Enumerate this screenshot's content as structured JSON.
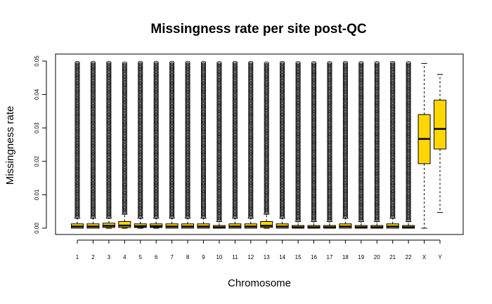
{
  "chart_data": {
    "type": "boxplot",
    "title": "Missingness rate per site post-QC",
    "xlabel": "Chromosome",
    "ylabel": "Missingness rate",
    "ylim": [
      0,
      0.05
    ],
    "yticks": [
      "0.00",
      "0.01",
      "0.02",
      "0.03",
      "0.04",
      "0.05"
    ],
    "grid": false,
    "legend": "none",
    "box_color": "#FFD700",
    "outlier_top": 0.0495,
    "categories": [
      "1",
      "2",
      "3",
      "4",
      "5",
      "6",
      "7",
      "8",
      "9",
      "10",
      "11",
      "12",
      "13",
      "14",
      "15",
      "16",
      "17",
      "18",
      "19",
      "20",
      "21",
      "22",
      "X",
      "Y"
    ],
    "series": [
      {
        "category": "1",
        "min": 0,
        "q1": 0,
        "median": 0.0005,
        "q3": 0.0013,
        "max": 0.003,
        "outliers_from": 0.0033
      },
      {
        "category": "2",
        "min": 0,
        "q1": 0,
        "median": 0.0005,
        "q3": 0.0013,
        "max": 0.003,
        "outliers_from": 0.0033
      },
      {
        "category": "3",
        "min": 0,
        "q1": 0.0002,
        "median": 0.0007,
        "q3": 0.0015,
        "max": 0.003,
        "outliers_from": 0.0033
      },
      {
        "category": "4",
        "min": 0,
        "q1": 0.0002,
        "median": 0.0008,
        "q3": 0.002,
        "max": 0.0042,
        "outliers_from": 0.0045
      },
      {
        "category": "5",
        "min": 0,
        "q1": 0.0002,
        "median": 0.0006,
        "q3": 0.0013,
        "max": 0.003,
        "outliers_from": 0.0033
      },
      {
        "category": "6",
        "min": 0,
        "q1": 0.0002,
        "median": 0.0006,
        "q3": 0.0013,
        "max": 0.003,
        "outliers_from": 0.0033
      },
      {
        "category": "7",
        "min": 0,
        "q1": 0,
        "median": 0.0005,
        "q3": 0.0013,
        "max": 0.003,
        "outliers_from": 0.0033
      },
      {
        "category": "8",
        "min": 0,
        "q1": 0,
        "median": 0.0005,
        "q3": 0.0013,
        "max": 0.003,
        "outliers_from": 0.0033
      },
      {
        "category": "9",
        "min": 0,
        "q1": 0,
        "median": 0.0005,
        "q3": 0.0013,
        "max": 0.003,
        "outliers_from": 0.0033
      },
      {
        "category": "10",
        "min": 0,
        "q1": 0,
        "median": 0.0003,
        "q3": 0.0008,
        "max": 0.002,
        "outliers_from": 0.0023
      },
      {
        "category": "11",
        "min": 0,
        "q1": 0,
        "median": 0.0005,
        "q3": 0.0013,
        "max": 0.003,
        "outliers_from": 0.0033
      },
      {
        "category": "12",
        "min": 0,
        "q1": 0,
        "median": 0.0005,
        "q3": 0.0013,
        "max": 0.003,
        "outliers_from": 0.0033
      },
      {
        "category": "13",
        "min": 0,
        "q1": 0.0002,
        "median": 0.0007,
        "q3": 0.002,
        "max": 0.0042,
        "outliers_from": 0.0045
      },
      {
        "category": "14",
        "min": 0,
        "q1": 0,
        "median": 0.0005,
        "q3": 0.0013,
        "max": 0.003,
        "outliers_from": 0.0033
      },
      {
        "category": "15",
        "min": 0,
        "q1": 0,
        "median": 0.0003,
        "q3": 0.0008,
        "max": 0.002,
        "outliers_from": 0.0023
      },
      {
        "category": "16",
        "min": 0,
        "q1": 0,
        "median": 0.0003,
        "q3": 0.0008,
        "max": 0.002,
        "outliers_from": 0.0023
      },
      {
        "category": "17",
        "min": 0,
        "q1": 0,
        "median": 0.0003,
        "q3": 0.0008,
        "max": 0.002,
        "outliers_from": 0.0023
      },
      {
        "category": "18",
        "min": 0,
        "q1": 0,
        "median": 0.0005,
        "q3": 0.0013,
        "max": 0.003,
        "outliers_from": 0.0033
      },
      {
        "category": "19",
        "min": 0,
        "q1": 0,
        "median": 0.0003,
        "q3": 0.0008,
        "max": 0.002,
        "outliers_from": 0.0023
      },
      {
        "category": "20",
        "min": 0,
        "q1": 0,
        "median": 0.0003,
        "q3": 0.0008,
        "max": 0.002,
        "outliers_from": 0.0023
      },
      {
        "category": "21",
        "min": 0,
        "q1": 0,
        "median": 0.0005,
        "q3": 0.0013,
        "max": 0.003,
        "outliers_from": 0.0033
      },
      {
        "category": "22",
        "min": 0,
        "q1": 0,
        "median": 0.0003,
        "q3": 0.0008,
        "max": 0.002,
        "outliers_from": 0.0023
      },
      {
        "category": "X",
        "min": 0,
        "q1": 0.0193,
        "median": 0.0267,
        "q3": 0.034,
        "max": 0.0493
      },
      {
        "category": "Y",
        "min": 0.0047,
        "q1": 0.0237,
        "median": 0.0297,
        "q3": 0.0383,
        "max": 0.046
      }
    ]
  }
}
